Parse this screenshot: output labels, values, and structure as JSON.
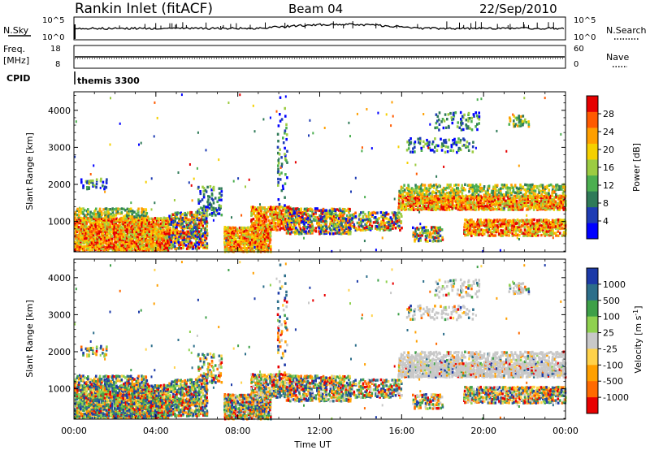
{
  "header": {
    "station": "Rankin Inlet (fitACF)",
    "beam": "Beam 04",
    "date": "22/Sep/2010"
  },
  "noise_panel": {
    "left_label": "N.Sky",
    "right_label": "N.Search",
    "left_ticks": [
      "10^5",
      "10^0"
    ],
    "right_ticks": [
      "10^5",
      "10^0"
    ]
  },
  "freq_panel": {
    "left_label_1": "Freq.",
    "left_label_2": "[MHz]",
    "right_label": "Nave",
    "left_ticks": [
      "18",
      "8"
    ],
    "right_ticks": [
      "60",
      "0"
    ]
  },
  "cpid_panel": {
    "label": "CPID",
    "program": "themis 3300"
  },
  "colors": {
    "power_scale": [
      "#0000ff",
      "#1e3cb4",
      "#2f7a58",
      "#4caf50",
      "#9ccc42",
      "#f5d000",
      "#ff9f00",
      "#ff5a00",
      "#e60000"
    ],
    "velocity_scale": [
      "#1c3aa8",
      "#2c6e8a",
      "#3ea048",
      "#8fd14f",
      "#c8c8c8",
      "#ffd24a",
      "#ffa000",
      "#ff6a00",
      "#e80000"
    ],
    "ground_scatter": "#c8c8c8",
    "line": "#000000"
  },
  "chart_data": [
    {
      "type": "line",
      "name": "noise",
      "x_range": [
        "00:00",
        "00:00"
      ],
      "description_series": [
        {
          "name": "N.Sky",
          "level": "near 10^3, steady, rising slightly 10:00-16:00"
        },
        {
          "name": "N.Search",
          "level": "dotted, near 10^3"
        }
      ]
    },
    {
      "type": "line",
      "name": "frequency",
      "ylabel": "Freq. [MHz]",
      "ylim": [
        8,
        18
      ],
      "y2label": "Nave",
      "y2lim": [
        0,
        60
      ],
      "series": [
        {
          "name": "Freq.",
          "values_hint": "constant ~12 MHz"
        }
      ]
    },
    {
      "type": "heatmap",
      "name": "power",
      "xlabel": "",
      "ylabel": "Slant Range [km]",
      "xlim": [
        "00:00",
        "24:00"
      ],
      "ylim": [
        180,
        4500
      ],
      "x_ticks": [
        "00:00",
        "04:00",
        "08:00",
        "12:00",
        "16:00",
        "20:00",
        "00:00"
      ],
      "y_ticks": [
        1000,
        2000,
        3000,
        4000
      ],
      "colorbar": {
        "label": "Power [dB]",
        "ticks": [
          4,
          8,
          12,
          16,
          20,
          24,
          28
        ]
      }
    },
    {
      "type": "heatmap",
      "name": "velocity",
      "xlabel": "Time UT",
      "ylabel": "Slant Range [km]",
      "xlim": [
        "00:00",
        "24:00"
      ],
      "ylim": [
        180,
        4500
      ],
      "x_ticks": [
        "00:00",
        "04:00",
        "08:00",
        "12:00",
        "16:00",
        "20:00",
        "00:00"
      ],
      "y_ticks": [
        1000,
        2000,
        3000,
        4000
      ],
      "colorbar": {
        "label": "Velocity [m s^-1]",
        "ticks": [
          1000,
          500,
          100,
          25,
          -25,
          -100,
          -500,
          -1000
        ]
      }
    }
  ]
}
